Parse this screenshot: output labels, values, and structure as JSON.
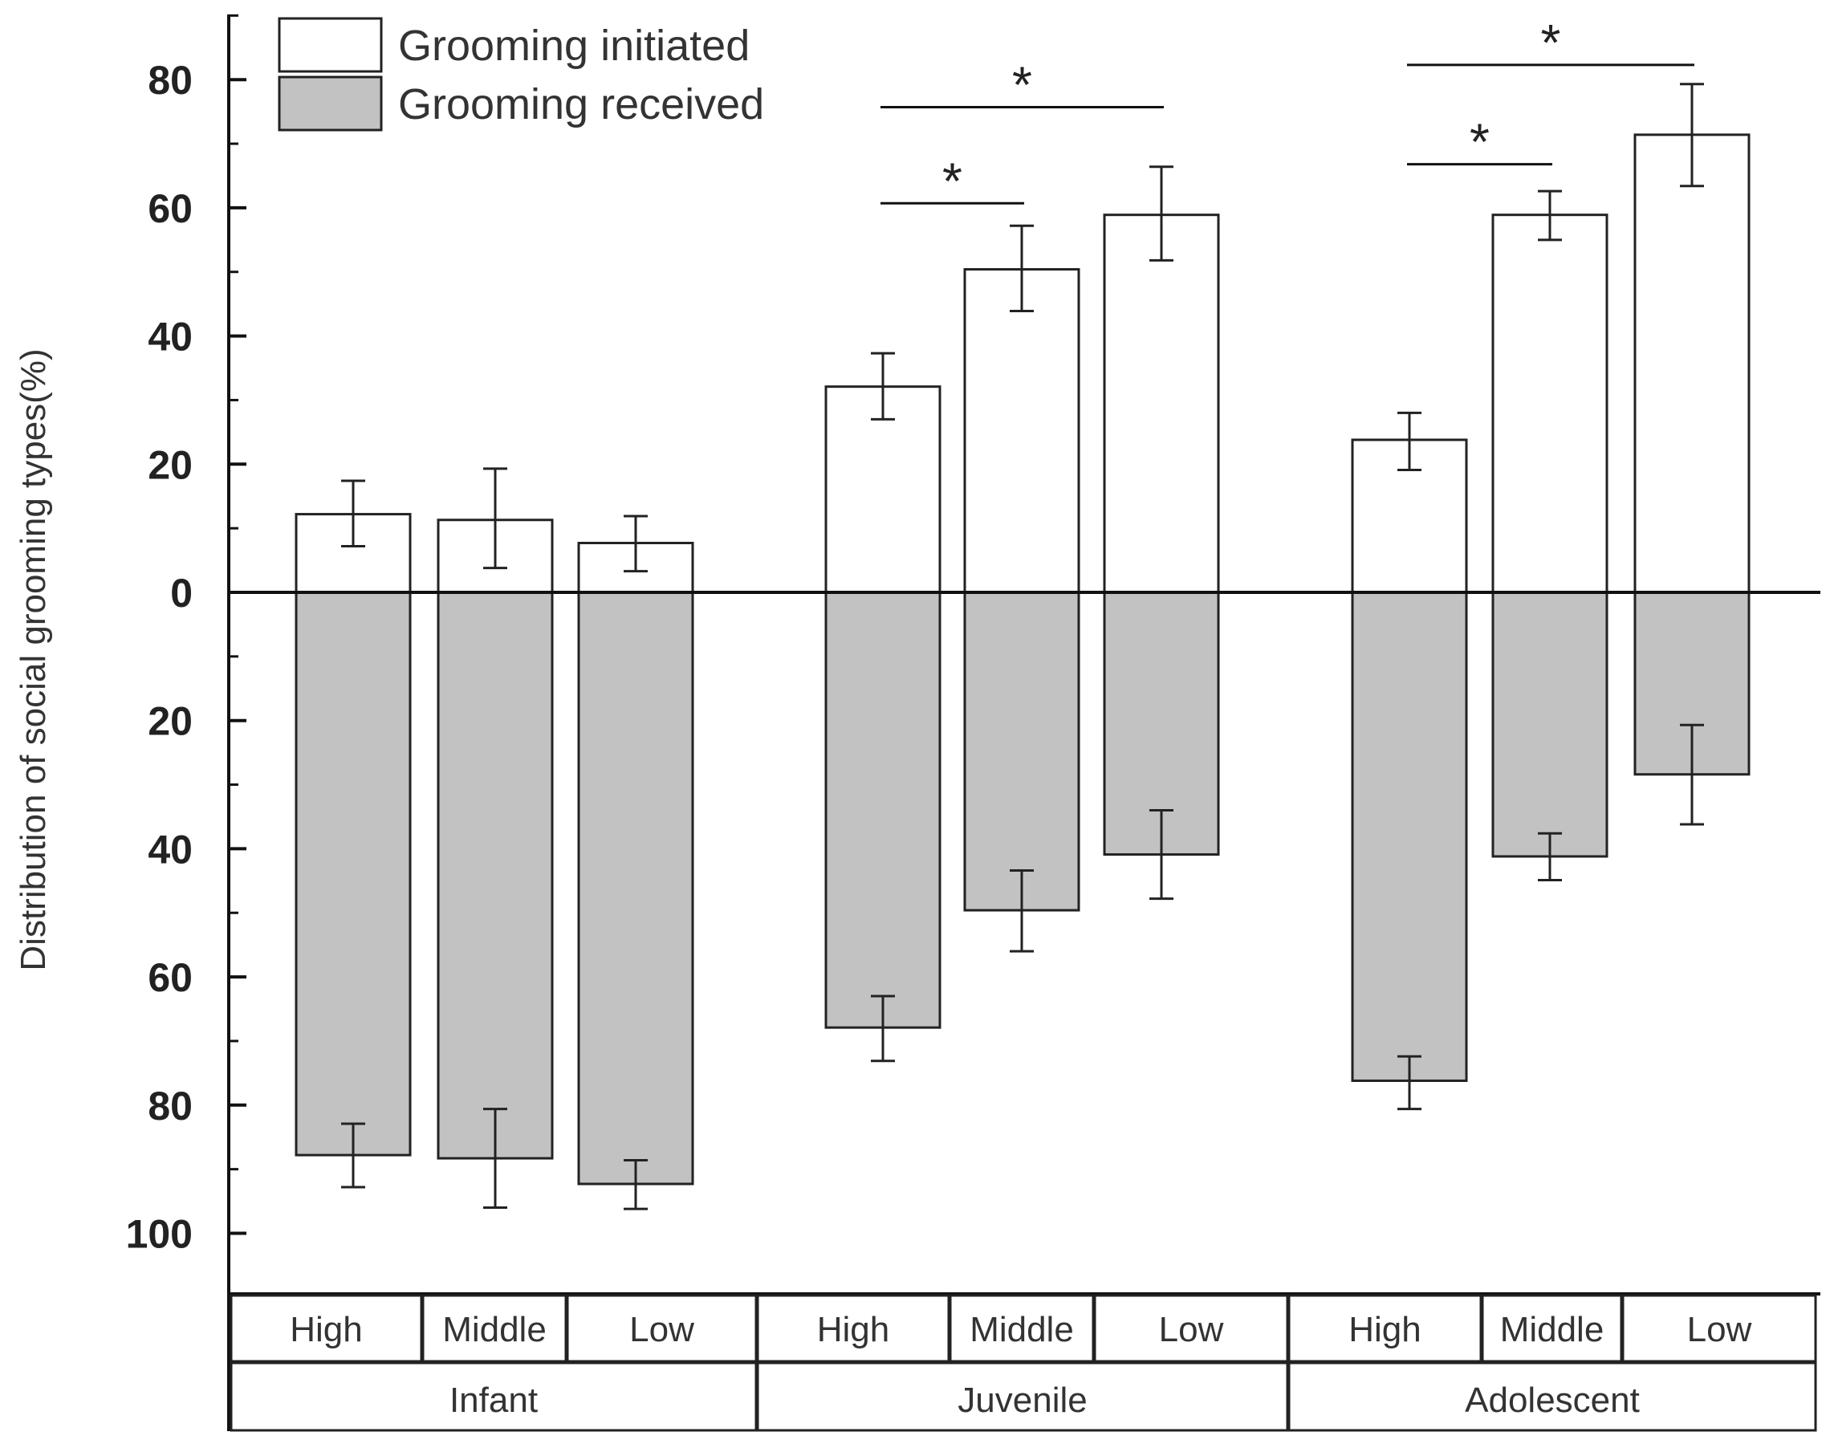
{
  "chart_data": {
    "type": "bar",
    "title": "",
    "xlabel": "",
    "ylabel": "Distribution of social grooming types(%)",
    "ylim": [
      -110,
      90
    ],
    "y_ticks": [
      {
        "value": 80,
        "label": "80"
      },
      {
        "value": 60,
        "label": "60"
      },
      {
        "value": 40,
        "label": "40"
      },
      {
        "value": 20,
        "label": "20"
      },
      {
        "value": 0,
        "label": "0"
      },
      {
        "value": -20,
        "label": "20"
      },
      {
        "value": -40,
        "label": "40"
      },
      {
        "value": -60,
        "label": "60"
      },
      {
        "value": -80,
        "label": "80"
      },
      {
        "value": -100,
        "label": "100"
      }
    ],
    "groups": [
      {
        "label": "Infant",
        "categories": [
          "High",
          "Middle",
          "Low"
        ]
      },
      {
        "label": "Juvenile",
        "categories": [
          "High",
          "Middle",
          "Low"
        ]
      },
      {
        "label": "Adolescent",
        "categories": [
          "High",
          "Middle",
          "Low"
        ]
      }
    ],
    "series": [
      {
        "name": "Grooming initiated",
        "color": "#ffffff",
        "direction": "up",
        "values": [
          12.2,
          11.3,
          7.7,
          32.1,
          50.4,
          58.9,
          23.8,
          58.9,
          71.4
        ],
        "err_low": [
          7.2,
          3.8,
          3.3,
          27.0,
          43.9,
          51.8,
          19.1,
          55.0,
          63.4
        ],
        "err_high": [
          17.4,
          19.3,
          11.9,
          37.3,
          57.2,
          66.4,
          28.0,
          62.6,
          79.3
        ]
      },
      {
        "name": "Grooming received",
        "color": "#c2c2c2",
        "direction": "down",
        "values": [
          87.8,
          88.3,
          92.3,
          67.9,
          49.6,
          40.9,
          76.2,
          41.2,
          28.4
        ],
        "err_low": [
          82.9,
          80.6,
          88.6,
          63.0,
          43.4,
          34.0,
          72.4,
          37.6,
          20.7
        ],
        "err_high": [
          92.8,
          96.0,
          96.2,
          73.1,
          56.0,
          47.8,
          80.6,
          44.9,
          36.2
        ]
      }
    ],
    "significance": [
      {
        "group": "Juvenile",
        "from": "High",
        "to": "Middle",
        "y": 60.7,
        "label": "*"
      },
      {
        "group": "Juvenile",
        "from": "High",
        "to": "Low",
        "y": 75.7,
        "label": "*"
      },
      {
        "group": "Adolescent",
        "from": "High",
        "to": "Middle",
        "y": 66.8,
        "label": "*"
      },
      {
        "group": "Adolescent",
        "from": "High",
        "to": "Low",
        "y": 82.3,
        "label": "*"
      }
    ],
    "legend": {
      "placement": "top-left",
      "entries": [
        "Grooming initiated",
        "Grooming received"
      ]
    }
  }
}
